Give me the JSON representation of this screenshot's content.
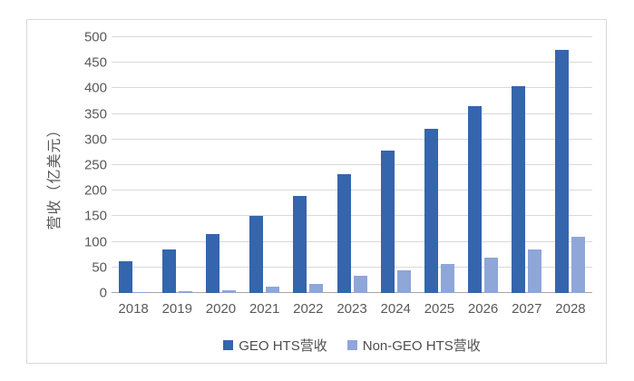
{
  "chart_data": {
    "type": "bar",
    "title": "",
    "y_axis_title": "营收（亿美元）",
    "xlabel": "",
    "ylabel": "营收（亿美元）",
    "categories": [
      "2018",
      "2019",
      "2020",
      "2021",
      "2022",
      "2023",
      "2024",
      "2025",
      "2026",
      "2027",
      "2028"
    ],
    "series": [
      {
        "name": "GEO HTS营收",
        "color": "#3565ad",
        "values": [
          62,
          85,
          115,
          150,
          190,
          233,
          278,
          321,
          365,
          405,
          475
        ]
      },
      {
        "name": "Non-GEO HTS营收",
        "color": "#8fa6d9",
        "values": [
          2,
          4,
          6,
          12,
          18,
          33,
          45,
          57,
          70,
          85,
          110
        ]
      }
    ],
    "ylim": [
      0,
      500
    ],
    "y_tick_step": 50,
    "grid": true,
    "legend_position": "bottom"
  },
  "colors": {
    "grid_line": "#d9d9d9",
    "axis_line": "#a6a6a6",
    "tick_text": "#595959",
    "border": "#d9d9d9",
    "background": "#ffffff"
  }
}
